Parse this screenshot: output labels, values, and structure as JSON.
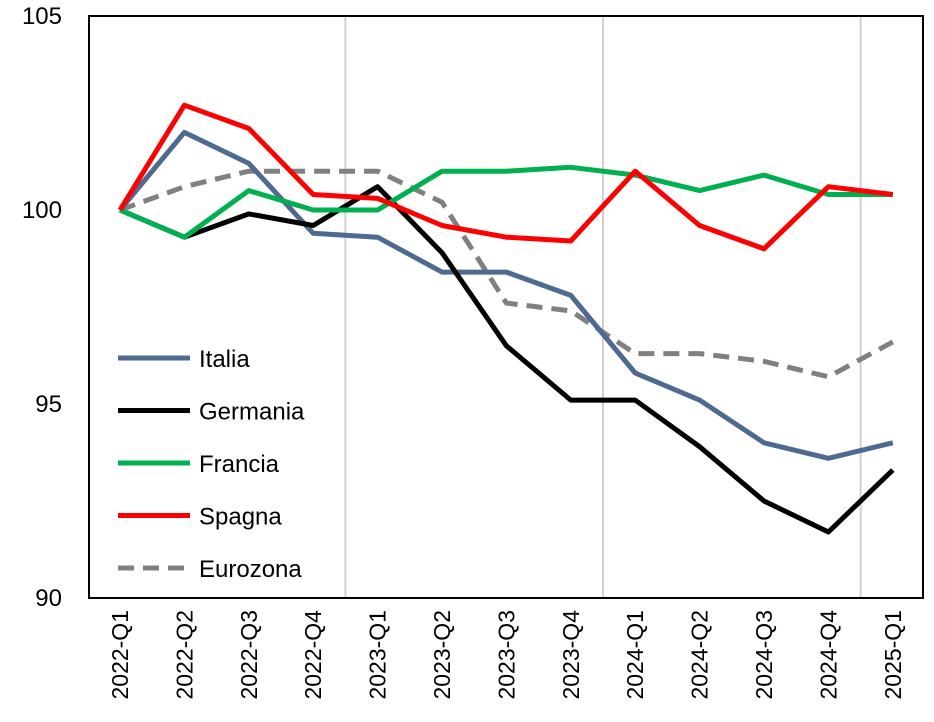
{
  "chart_data": {
    "type": "line",
    "title": "",
    "xlabel": "",
    "ylabel": "",
    "ylim": [
      90,
      105
    ],
    "yticks": [
      90,
      95,
      100,
      105
    ],
    "categories": [
      "2022-Q1",
      "2022-Q2",
      "2022-Q3",
      "2022-Q4",
      "2023-Q1",
      "2023-Q2",
      "2023-Q3",
      "2023-Q4",
      "2024-Q1",
      "2024-Q2",
      "2024-Q3",
      "2024-Q4",
      "2025-Q1"
    ],
    "year_separators_after": [
      "2022-Q4",
      "2023-Q4",
      "2024-Q4"
    ],
    "legend_position": "left",
    "grid": false,
    "series": [
      {
        "name": "Italia",
        "color": "#4e6a92",
        "dash": "solid",
        "values": [
          100,
          102.0,
          101.2,
          99.4,
          99.3,
          98.4,
          98.4,
          97.8,
          95.8,
          95.1,
          94.0,
          93.6,
          94.0
        ]
      },
      {
        "name": "Germania",
        "color": "#000000",
        "dash": "solid",
        "values": [
          100,
          99.3,
          99.9,
          99.6,
          100.6,
          98.9,
          96.5,
          95.1,
          95.1,
          93.9,
          92.5,
          91.7,
          93.3
        ]
      },
      {
        "name": "Francia",
        "color": "#00b050",
        "dash": "solid",
        "values": [
          100,
          99.3,
          100.5,
          100.0,
          100.0,
          101.0,
          101.0,
          101.1,
          100.9,
          100.5,
          100.9,
          100.4,
          100.4
        ]
      },
      {
        "name": "Spagna",
        "color": "#ff0000",
        "dash": "solid",
        "values": [
          100,
          102.7,
          102.1,
          100.4,
          100.3,
          99.6,
          99.3,
          99.2,
          101.0,
          99.6,
          99.0,
          100.6,
          100.4
        ]
      },
      {
        "name": "Eurozona",
        "color": "#808080",
        "dash": "dashed",
        "values": [
          100,
          100.6,
          101.0,
          101.0,
          101.0,
          100.2,
          97.6,
          97.4,
          96.3,
          96.3,
          96.1,
          95.7,
          96.6
        ]
      }
    ]
  }
}
